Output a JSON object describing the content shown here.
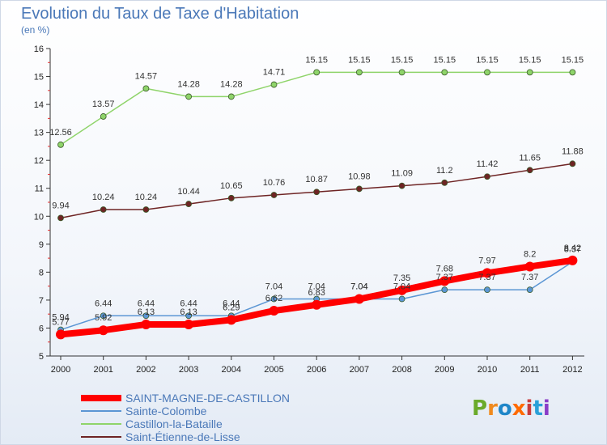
{
  "chart_data": {
    "type": "line",
    "title": "Evolution du Taux de Taxe d'Habitation",
    "subtitle": "(en %)",
    "xlabel": "",
    "ylabel": "",
    "x": [
      "2000",
      "2001",
      "2002",
      "2003",
      "2004",
      "2005",
      "2006",
      "2007",
      "2008",
      "2009",
      "2010",
      "2011",
      "2012"
    ],
    "ylim": [
      5,
      16
    ],
    "yticks": [
      "5",
      "6",
      "7",
      "8",
      "9",
      "10",
      "11",
      "12",
      "13",
      "14",
      "15",
      "16"
    ],
    "grid": false,
    "legend_position": "bottom-left",
    "series": [
      {
        "name": "SAINT-MAGNE-DE-CASTILLON",
        "color": "#ff0000",
        "values": [
          5.77,
          5.92,
          6.13,
          6.13,
          6.29,
          6.62,
          6.83,
          7.04,
          7.35,
          7.68,
          7.97,
          8.2,
          8.42
        ],
        "labels": [
          "5.77",
          "5.92",
          "6.13",
          "6.13",
          "6.29",
          "6.62",
          "6.83",
          "7.04",
          "7.35",
          "7.68",
          "7.97",
          "8.2",
          "8.42"
        ]
      },
      {
        "name": "Sainte-Colombe",
        "color": "#5b96d4",
        "values": [
          5.94,
          6.44,
          6.44,
          6.44,
          6.44,
          7.04,
          7.04,
          7.04,
          7.04,
          7.37,
          7.37,
          7.37,
          8.37
        ],
        "labels": [
          "5.94",
          "6.44",
          "6.44",
          "6.44",
          "6.44",
          "7.04",
          "7.04",
          "7.04",
          "7.04",
          "7.37",
          "7.37",
          "7.37",
          "8.37"
        ]
      },
      {
        "name": "Castillon-la-Bataille",
        "color": "#8fd46a",
        "values": [
          12.56,
          13.57,
          14.57,
          14.28,
          14.28,
          14.71,
          15.15,
          15.15,
          15.15,
          15.15,
          15.15,
          15.15,
          15.15
        ],
        "labels": [
          "12.56",
          "13.57",
          "14.57",
          "14.28",
          "14.28",
          "14.71",
          "15.15",
          "15.15",
          "15.15",
          "15.15",
          "15.15",
          "15.15",
          "15.15"
        ]
      },
      {
        "name": "Saint-Étienne-de-Lisse",
        "color": "#6e2424",
        "values": [
          9.94,
          10.24,
          10.24,
          10.44,
          10.65,
          10.76,
          10.87,
          10.98,
          11.09,
          11.2,
          11.42,
          11.65,
          11.88
        ],
        "labels": [
          "9.94",
          "10.24",
          "10.24",
          "10.44",
          "10.65",
          "10.76",
          "10.87",
          "10.98",
          "11.09",
          "11.2",
          "11.42",
          "11.65",
          "11.88"
        ]
      }
    ]
  },
  "branding": {
    "logo_text": "Proxiti",
    "logo_colors": [
      "#6aaa2a",
      "#f08a1e",
      "#1f86c8",
      "#ff6a00",
      "#c83c3c",
      "#2aa0d8",
      "#8a3cc8"
    ]
  }
}
